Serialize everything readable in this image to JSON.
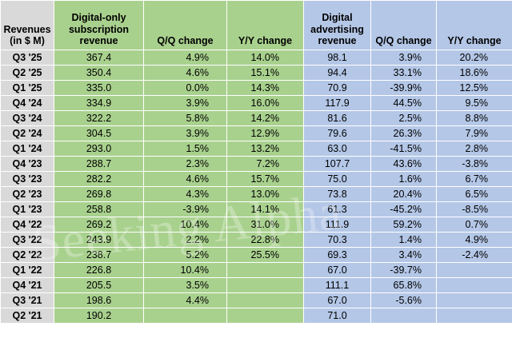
{
  "headers": {
    "period": "Revenues (in $ M)",
    "digital_sub": "Digital-only subscription revenue",
    "qq1": "Q/Q change",
    "yy1": "Y/Y change",
    "digital_ad": "Digital advertising revenue",
    "qq2": "Q/Q change",
    "yy2": "Y/Y change"
  },
  "rows": [
    {
      "period": "Q3 '25",
      "sub": "367.4",
      "sub_qq": "4.9%",
      "sub_yy": "14.0%",
      "ad": "98.1",
      "ad_qq": "3.9%",
      "ad_yy": "20.2%"
    },
    {
      "period": "Q2 '25",
      "sub": "350.4",
      "sub_qq": "4.6%",
      "sub_yy": "15.1%",
      "ad": "94.4",
      "ad_qq": "33.1%",
      "ad_yy": "18.6%"
    },
    {
      "period": "Q1 '25",
      "sub": "335.0",
      "sub_qq": "0.0%",
      "sub_yy": "14.3%",
      "ad": "70.9",
      "ad_qq": "-39.9%",
      "ad_yy": "12.5%"
    },
    {
      "period": "Q4 '24",
      "sub": "334.9",
      "sub_qq": "3.9%",
      "sub_yy": "16.0%",
      "ad": "117.9",
      "ad_qq": "44.5%",
      "ad_yy": "9.5%"
    },
    {
      "period": "Q3 '24",
      "sub": "322.2",
      "sub_qq": "5.8%",
      "sub_yy": "14.2%",
      "ad": "81.6",
      "ad_qq": "2.5%",
      "ad_yy": "8.8%"
    },
    {
      "period": "Q2 '24",
      "sub": "304.5",
      "sub_qq": "3.9%",
      "sub_yy": "12.9%",
      "ad": "79.6",
      "ad_qq": "26.3%",
      "ad_yy": "7.9%"
    },
    {
      "period": "Q1 '24",
      "sub": "293.0",
      "sub_qq": "1.5%",
      "sub_yy": "13.2%",
      "ad": "63.0",
      "ad_qq": "-41.5%",
      "ad_yy": "2.8%"
    },
    {
      "period": "Q4 '23",
      "sub": "288.7",
      "sub_qq": "2.3%",
      "sub_yy": "7.2%",
      "ad": "107.7",
      "ad_qq": "43.6%",
      "ad_yy": "-3.8%"
    },
    {
      "period": "Q3 '23",
      "sub": "282.2",
      "sub_qq": "4.6%",
      "sub_yy": "15.7%",
      "ad": "75.0",
      "ad_qq": "1.6%",
      "ad_yy": "6.7%"
    },
    {
      "period": "Q2 '23",
      "sub": "269.8",
      "sub_qq": "4.3%",
      "sub_yy": "13.0%",
      "ad": "73.8",
      "ad_qq": "20.4%",
      "ad_yy": "6.5%"
    },
    {
      "period": "Q1 '23",
      "sub": "258.8",
      "sub_qq": "-3.9%",
      "sub_yy": "14.1%",
      "ad": "61.3",
      "ad_qq": "-45.2%",
      "ad_yy": "-8.5%"
    },
    {
      "period": "Q4 '22",
      "sub": "269.2",
      "sub_qq": "10.4%",
      "sub_yy": "31.0%",
      "ad": "111.9",
      "ad_qq": "59.2%",
      "ad_yy": "0.7%"
    },
    {
      "period": "Q3 '22",
      "sub": "243.9",
      "sub_qq": "2.2%",
      "sub_yy": "22.8%",
      "ad": "70.3",
      "ad_qq": "1.4%",
      "ad_yy": "4.9%"
    },
    {
      "period": "Q2 '22",
      "sub": "238.7",
      "sub_qq": "5.2%",
      "sub_yy": "25.5%",
      "ad": "69.3",
      "ad_qq": "3.4%",
      "ad_yy": "-2.4%"
    },
    {
      "period": "Q1 '22",
      "sub": "226.8",
      "sub_qq": "10.4%",
      "sub_yy": "",
      "ad": "67.0",
      "ad_qq": "-39.7%",
      "ad_yy": ""
    },
    {
      "period": "Q4 '21",
      "sub": "205.5",
      "sub_qq": "3.5%",
      "sub_yy": "",
      "ad": "111.1",
      "ad_qq": "65.8%",
      "ad_yy": ""
    },
    {
      "period": "Q3 '21",
      "sub": "198.6",
      "sub_qq": "4.4%",
      "sub_yy": "",
      "ad": "67.0",
      "ad_qq": "-5.6%",
      "ad_yy": ""
    },
    {
      "period": "Q2 '21",
      "sub": "190.2",
      "sub_qq": "",
      "sub_yy": "",
      "ad": "71.0",
      "ad_qq": "",
      "ad_yy": ""
    }
  ],
  "watermark": "Seeking Alpha",
  "colors": {
    "label": "#d9d9d9",
    "subscription": "#a9d18e",
    "advertising": "#b4c7e7"
  }
}
